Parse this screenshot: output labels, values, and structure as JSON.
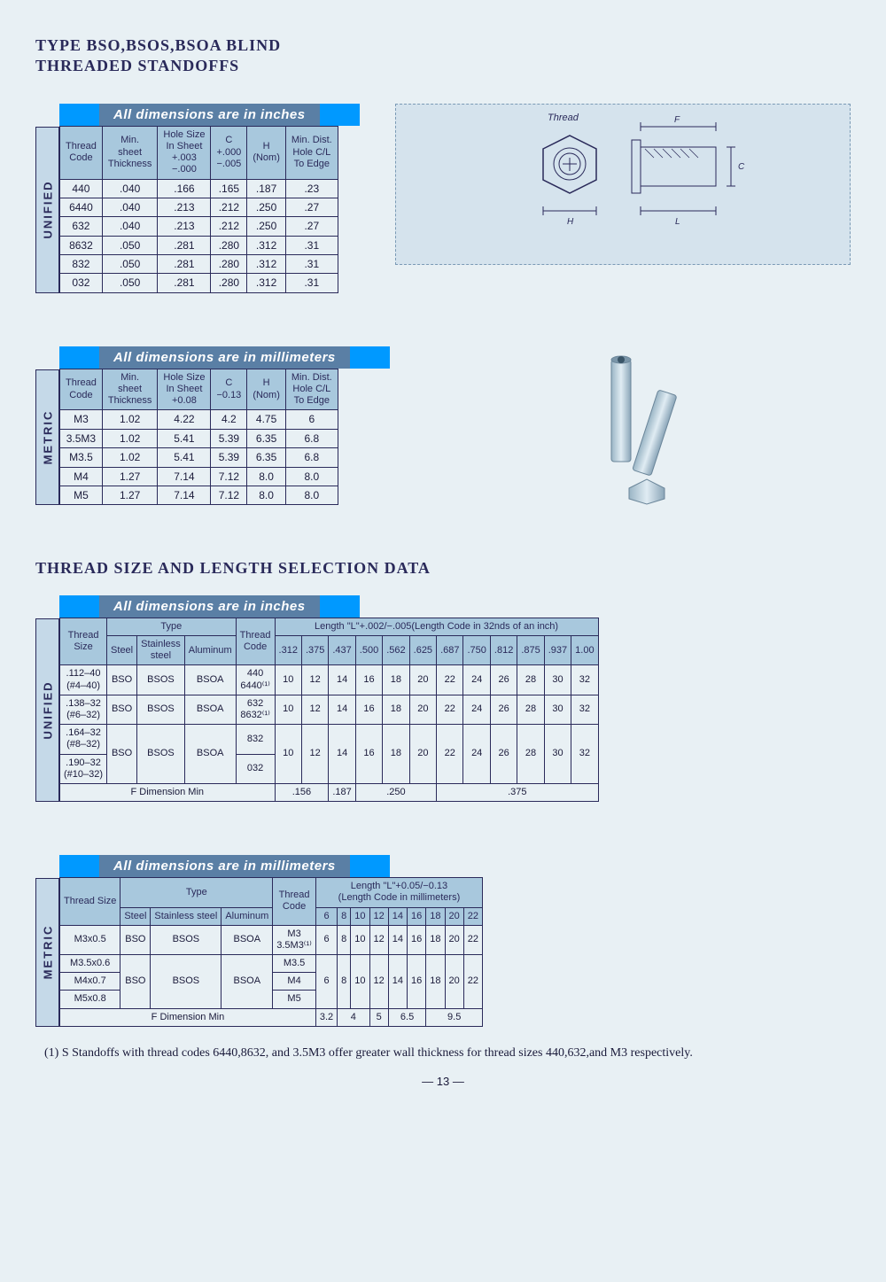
{
  "title_line1": "TYPE BSO,BSOS,BSOA BLIND",
  "title_line2": "THREADED STANDOFFS",
  "banners": {
    "inches": "All dimensions are in inches",
    "mm": "All dimensions are in millimeters"
  },
  "side_labels": {
    "unified": "UNIFIED",
    "metric": "METRIC"
  },
  "table1": {
    "headers": [
      "Thread\nCode",
      "Min.\nsheet\nThickness",
      "Hole Size\nIn Sheet\n+.003\n−.000",
      "C\n+.000\n−.005",
      "H\n(Nom)",
      "Min. Dist.\nHole C/L\nTo Edge"
    ],
    "rows": [
      [
        "440",
        ".040",
        ".166",
        ".165",
        ".187",
        ".23"
      ],
      [
        "6440",
        ".040",
        ".213",
        ".212",
        ".250",
        ".27"
      ],
      [
        "632",
        ".040",
        ".213",
        ".212",
        ".250",
        ".27"
      ],
      [
        "8632",
        ".050",
        ".281",
        ".280",
        ".312",
        ".31"
      ],
      [
        "832",
        ".050",
        ".281",
        ".280",
        ".312",
        ".31"
      ],
      [
        "032",
        ".050",
        ".281",
        ".280",
        ".312",
        ".31"
      ]
    ]
  },
  "table2": {
    "headers": [
      "Thread\nCode",
      "Min.\nsheet\nThickness",
      "Hole Size\nIn Sheet\n+0.08",
      "C\n−0.13",
      "H\n(Nom)",
      "Min. Dist.\nHole C/L\nTo Edge"
    ],
    "rows": [
      [
        "M3",
        "1.02",
        "4.22",
        "4.2",
        "4.75",
        "6"
      ],
      [
        "3.5M3",
        "1.02",
        "5.41",
        "5.39",
        "6.35",
        "6.8"
      ],
      [
        "M3.5",
        "1.02",
        "5.41",
        "5.39",
        "6.35",
        "6.8"
      ],
      [
        "M4",
        "1.27",
        "7.14",
        "7.12",
        "8.0",
        "8.0"
      ],
      [
        "M5",
        "1.27",
        "7.14",
        "7.12",
        "8.0",
        "8.0"
      ]
    ]
  },
  "section2_title": "THREAD SIZE AND LENGTH SELECTION DATA",
  "table3": {
    "h_thread_size": "Thread\nSize",
    "h_type": "Type",
    "h_steel": "Steel",
    "h_stainless": "Stainless\nsteel",
    "h_aluminum": "Aluminum",
    "h_thread_code": "Thread\nCode",
    "h_length": "Length \"L\"+.002/−.005(Length Code in 32nds of an inch)",
    "length_cols": [
      ".312",
      ".375",
      ".437",
      ".500",
      ".562",
      ".625",
      ".687",
      ".750",
      ".812",
      ".875",
      ".937",
      "1.00"
    ],
    "rows": [
      {
        "size": ".112–40\n(#4–40)",
        "s": "BSO",
        "ss": "BSOS",
        "al": "BSOA",
        "code": "440\n6440⁽¹⁾",
        "vals": [
          "10",
          "12",
          "14",
          "16",
          "18",
          "20",
          "22",
          "24",
          "26",
          "28",
          "30",
          "32"
        ]
      },
      {
        "size": ".138–32\n(#6–32)",
        "s": "BSO",
        "ss": "BSOS",
        "al": "BSOA",
        "code": "632\n8632⁽¹⁾",
        "vals": [
          "10",
          "12",
          "14",
          "16",
          "18",
          "20",
          "22",
          "24",
          "26",
          "28",
          "30",
          "32"
        ]
      },
      {
        "size": ".164–32\n(#8–32)",
        "s": "BSO",
        "ss": "BSOS",
        "al": "BSOA",
        "code": "832",
        "vals": [
          "10",
          "12",
          "14",
          "16",
          "18",
          "20",
          "22",
          "24",
          "26",
          "28",
          "30",
          "32"
        ],
        "merge_next": true
      },
      {
        "size": ".190–32\n(#10–32)",
        "code": "032"
      }
    ],
    "fdim_label": "F Dimension Min",
    "fdim": [
      [
        ".156",
        2
      ],
      [
        ".187",
        1
      ],
      [
        ".250",
        3
      ],
      [
        ".375",
        6
      ]
    ]
  },
  "table4": {
    "h_thread_size": "Thread Size",
    "h_type": "Type",
    "h_steel": "Steel",
    "h_stainless": "Stainless steel",
    "h_aluminum": "Aluminum",
    "h_thread_code": "Thread\nCode",
    "h_length": "Length \"L\"+0.05/−0.13\n(Length Code in millimeters)",
    "length_cols": [
      "6",
      "8",
      "10",
      "12",
      "14",
      "16",
      "18",
      "20",
      "22"
    ],
    "rows": [
      {
        "size": "M3x0.5",
        "s": "BSO",
        "ss": "BSOS",
        "al": "BSOA",
        "code": "M3\n3.5M3⁽¹⁾",
        "vals": [
          "6",
          "8",
          "10",
          "12",
          "14",
          "16",
          "18",
          "20",
          "22"
        ]
      },
      {
        "size": "M3.5x0.6",
        "s": "BSO",
        "ss": "BSOS",
        "al": "BSOA",
        "code": "M3.5",
        "vals": [
          "6",
          "8",
          "10",
          "12",
          "14",
          "16",
          "18",
          "20",
          "22"
        ],
        "merge_next": 2
      },
      {
        "size": "M4x0.7",
        "code": "M4"
      },
      {
        "size": "M5x0.8",
        "code": "M5"
      }
    ],
    "fdim_label": "F Dimension Min",
    "fdim": [
      [
        "3.2",
        1
      ],
      [
        "4",
        2
      ],
      [
        "5",
        1
      ],
      [
        "6.5",
        2
      ],
      [
        "9.5",
        3
      ]
    ]
  },
  "footnote": "(1) S Standoffs with thread codes 6440,8632, and 3.5M3 offer greater wall thickness for thread sizes 440,632,and M3 respectively.",
  "pagenum": "— 13 —",
  "diagram_label": "Thread",
  "dim_labels": {
    "F": "F",
    "C": "C",
    "L": "L",
    "H": "H"
  }
}
